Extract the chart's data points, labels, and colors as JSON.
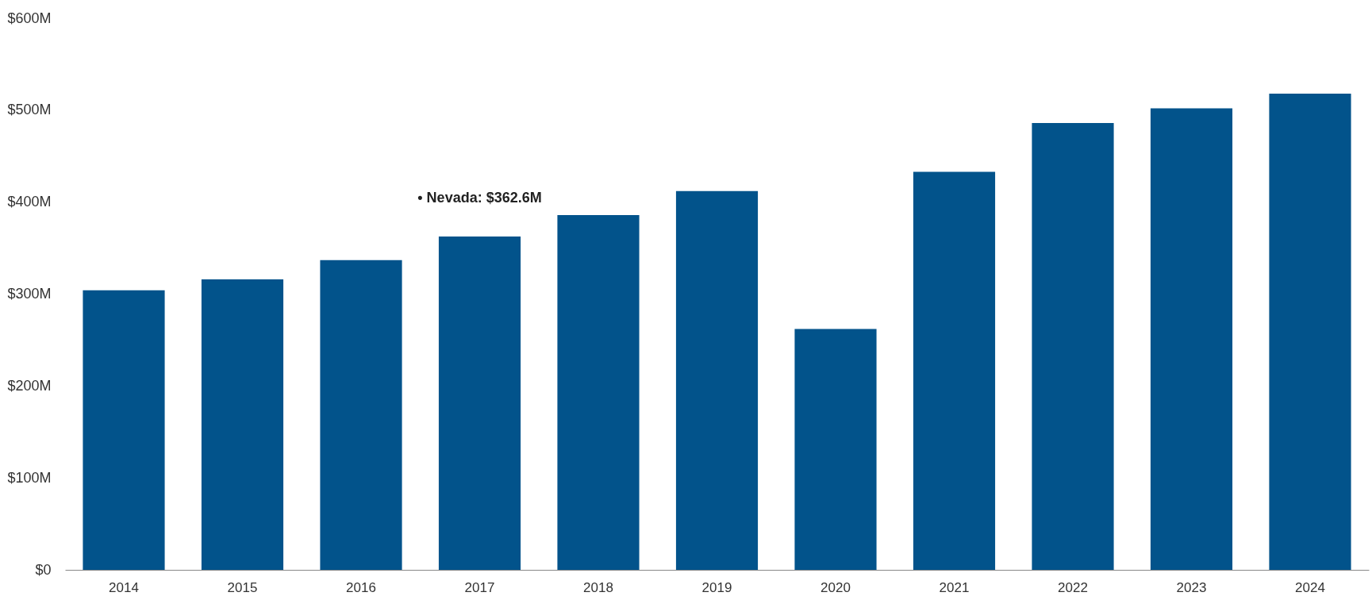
{
  "chart_data": {
    "type": "bar",
    "categories": [
      "2014",
      "2015",
      "2016",
      "2017",
      "2018",
      "2019",
      "2020",
      "2021",
      "2022",
      "2023",
      "2024"
    ],
    "series": [
      {
        "color": "#02538b",
        "values": [
          304,
          316,
          337,
          362.6,
          386,
          412,
          262,
          433,
          486,
          502,
          518
        ]
      }
    ],
    "ylim": [
      0,
      600
    ],
    "yticks": [
      {
        "value": 0,
        "label": "$0"
      },
      {
        "value": 100,
        "label": "$100M"
      },
      {
        "value": 200,
        "label": "$200M"
      },
      {
        "value": 300,
        "label": "$300M"
      },
      {
        "value": 400,
        "label": "$400M"
      },
      {
        "value": 500,
        "label": "$500M"
      },
      {
        "value": 600,
        "label": "$600M"
      }
    ],
    "annotations": [
      {
        "text": "• Nevada: $362.6M",
        "x": "2017",
        "y": 362.6
      }
    ],
    "grid": false,
    "legend": false
  }
}
